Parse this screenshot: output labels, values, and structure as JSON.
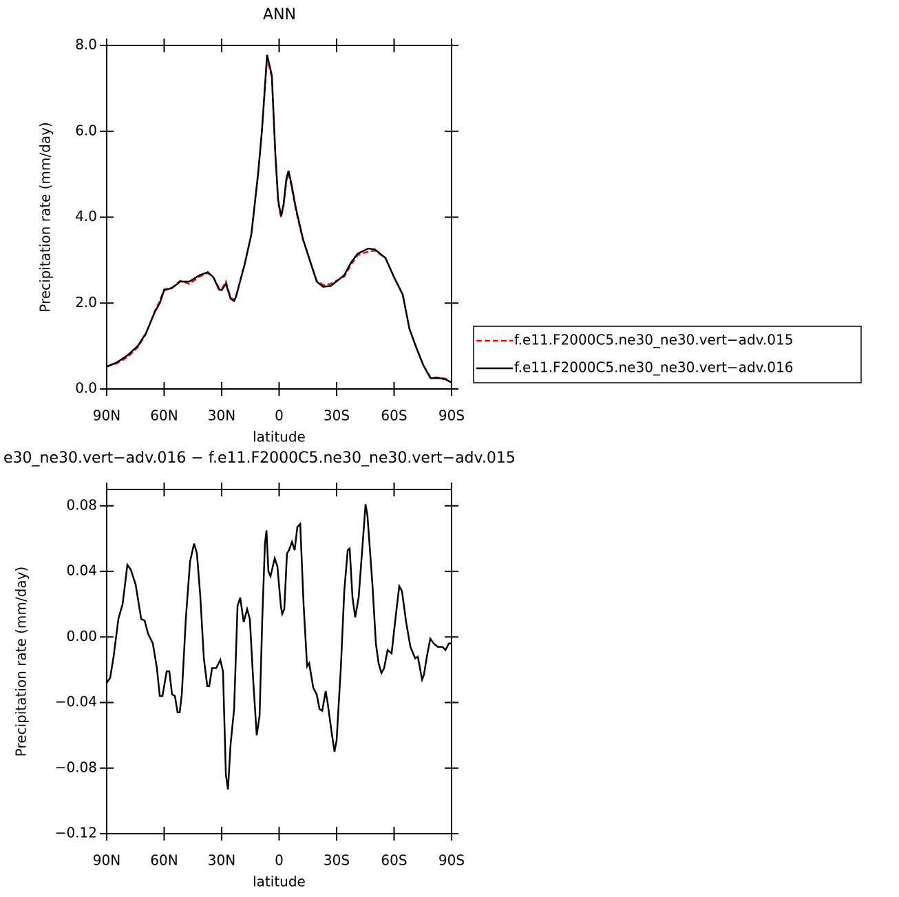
{
  "chart_data": [
    {
      "type": "line",
      "title": "ANN",
      "x_label": "latitude",
      "y_label": "Precipitation rate (mm/day)",
      "xlim": [
        90,
        -90
      ],
      "ylim": [
        0,
        8
      ],
      "xticks": [
        {
          "value": 90,
          "label": "90N"
        },
        {
          "value": 60,
          "label": "60N"
        },
        {
          "value": 30,
          "label": "30N"
        },
        0,
        {
          "value": -30,
          "label": "30S"
        },
        {
          "value": -60,
          "label": "60S"
        },
        {
          "value": -90,
          "label": "90S"
        }
      ],
      "yticks": [
        {
          "value": 0,
          "label": "0.0"
        },
        {
          "value": 2,
          "label": "2.0"
        },
        {
          "value": 4,
          "label": "4.0"
        },
        {
          "value": 6,
          "label": "6.0"
        },
        {
          "value": 8,
          "label": "8.0"
        }
      ],
      "legend": "right",
      "x": [
        90,
        84.6,
        79.2,
        73.8,
        69.5,
        64.8,
        62.3,
        60,
        55.9,
        51.6,
        46.9,
        41.5,
        37.2,
        34.3,
        31.4,
        30,
        27.8,
        25.3,
        23.5,
        22.5,
        18,
        14.5,
        13,
        11,
        9,
        6.3,
        3.8,
        2,
        0.5,
        -1,
        -2.3,
        -3.8,
        -4.9,
        -6.3,
        -8.8,
        -12.4,
        -16,
        -19.6,
        -23,
        -27,
        -34,
        -37.6,
        -41,
        -46.5,
        -50,
        -55.5,
        -60,
        -64.5,
        -68,
        -71.7,
        -75.3,
        -79,
        -84,
        -87,
        -90
      ],
      "series": [
        {
          "name": "f.e11.F2000C5.ne30_ne30.vert−adv.015",
          "color": "#ff0000",
          "line_style": "dashed",
          "values": [
            0.52,
            0.6,
            0.74,
            0.97,
            1.28,
            1.82,
            2.05,
            2.32,
            2.36,
            2.52,
            2.45,
            2.62,
            2.7,
            2.6,
            2.35,
            2.32,
            2.5,
            2.12,
            2.08,
            2.17,
            2.9,
            3.6,
            4.2,
            5.0,
            6.0,
            7.72,
            7.25,
            5.45,
            4.35,
            4.0,
            4.25,
            4.85,
            5.02,
            4.75,
            4.15,
            3.48,
            3.0,
            2.52,
            2.42,
            2.45,
            2.62,
            2.9,
            3.12,
            3.2,
            3.22,
            3.05,
            2.6,
            2.2,
            1.4,
            0.95,
            0.55,
            0.27,
            0.26,
            0.24,
            0.15
          ]
        },
        {
          "name": "f.e11.F2000C5.ne30_ne30.vert−adv.016",
          "color": "#000000",
          "line_style": "solid",
          "values": [
            0.52,
            0.62,
            0.78,
            1.0,
            1.3,
            1.8,
            2.0,
            2.3,
            2.35,
            2.5,
            2.5,
            2.65,
            2.72,
            2.6,
            2.32,
            2.3,
            2.45,
            2.1,
            2.05,
            2.15,
            2.9,
            3.6,
            4.2,
            5.0,
            6.0,
            7.78,
            7.3,
            5.5,
            4.4,
            4.02,
            4.3,
            4.9,
            5.08,
            4.8,
            4.2,
            3.5,
            3.0,
            2.5,
            2.38,
            2.4,
            2.65,
            2.95,
            3.15,
            3.27,
            3.25,
            3.05,
            2.6,
            2.2,
            1.4,
            0.95,
            0.55,
            0.25,
            0.25,
            0.22,
            0.15
          ]
        }
      ]
    },
    {
      "type": "line",
      "title": "e30_ne30.vert−adv.016 − f.e11.F2000C5.ne30_ne30.vert−adv.015",
      "x_label": "latitude",
      "y_label": "Precipitation rate (mm/day)",
      "xlim": [
        90,
        -90
      ],
      "ylim": [
        -0.12,
        0.09
      ],
      "xticks": [
        {
          "value": 90,
          "label": "90N"
        },
        {
          "value": 60,
          "label": "60N"
        },
        {
          "value": 30,
          "label": "30N"
        },
        0,
        {
          "value": -30,
          "label": "30S"
        },
        {
          "value": -60,
          "label": "60S"
        },
        {
          "value": -90,
          "label": "90S"
        }
      ],
      "yticks": [
        {
          "value": -0.12,
          "label": "−0.12"
        },
        {
          "value": -0.08,
          "label": "−0.08"
        },
        {
          "value": -0.04,
          "label": "−0.04"
        },
        {
          "value": 0,
          "label": "0.00"
        },
        0.04,
        0.08
      ],
      "x": [
        90,
        88.2,
        86.4,
        83.9,
        81.7,
        79.2,
        77.4,
        74.9,
        72.0,
        70.2,
        68.4,
        65.9,
        63.8,
        62.3,
        60.9,
        58.7,
        57.3,
        55.9,
        54.4,
        53.0,
        51.9,
        50.8,
        48.7,
        46.5,
        44.4,
        42.9,
        41.1,
        39.3,
        37.5,
        36.5,
        35.0,
        32.9,
        30.7,
        29.3,
        27.8,
        26.7,
        25.3,
        23.5,
        21.7,
        20.3,
        18.5,
        16.7,
        15.3,
        13.5,
        11.7,
        10.2,
        8.8,
        7.4,
        6.6,
        5.6,
        4.5,
        2.3,
        0.9,
        -0.9,
        -1.6,
        -2.7,
        -4.1,
        -5.2,
        -6.7,
        -8.1,
        -9.5,
        -11.0,
        -12.8,
        -14.6,
        -15.7,
        -17.8,
        -19.6,
        -21.1,
        -22.5,
        -24.3,
        -25.3,
        -27.5,
        -28.9,
        -30.0,
        -32.2,
        -34.0,
        -35.8,
        -36.8,
        -38.3,
        -39.7,
        -41.5,
        -43.6,
        -45.1,
        -46.1,
        -48.7,
        -50.5,
        -51.9,
        -53.4,
        -54.8,
        -56.6,
        -58.7,
        -60.5,
        -62.7,
        -64.1,
        -66.3,
        -68.5,
        -71.0,
        -72.4,
        -74.6,
        -75.6,
        -77.1,
        -78.9,
        -80.7,
        -82.8,
        -85.3,
        -86.8,
        -88.6,
        -90
      ],
      "series": [
        {
          "color": "#000000",
          "line_style": "solid",
          "values": [
            -0.028,
            -0.025,
            -0.012,
            0.011,
            0.02,
            0.044,
            0.041,
            0.032,
            0.011,
            0.01,
            0.002,
            -0.004,
            -0.019,
            -0.036,
            -0.036,
            -0.021,
            -0.021,
            -0.035,
            -0.036,
            -0.046,
            -0.046,
            -0.035,
            0.011,
            0.046,
            0.057,
            0.051,
            0.024,
            -0.013,
            -0.03,
            -0.03,
            -0.019,
            -0.019,
            -0.014,
            -0.021,
            -0.084,
            -0.093,
            -0.065,
            -0.044,
            0.019,
            0.024,
            0.009,
            0.017,
            0.011,
            -0.027,
            -0.06,
            -0.048,
            0.011,
            0.057,
            0.065,
            0.04,
            0.037,
            0.048,
            0.043,
            0.019,
            0.014,
            0.017,
            0.051,
            0.053,
            0.058,
            0.053,
            0.067,
            0.069,
            0.019,
            -0.018,
            -0.016,
            -0.031,
            -0.035,
            -0.044,
            -0.045,
            -0.033,
            -0.04,
            -0.059,
            -0.07,
            -0.063,
            -0.019,
            0.028,
            0.053,
            0.054,
            0.024,
            0.012,
            0.024,
            0.057,
            0.081,
            0.074,
            0.032,
            -0.004,
            -0.016,
            -0.022,
            -0.019,
            -0.008,
            -0.01,
            0.009,
            0.031,
            0.028,
            0.009,
            -0.006,
            -0.013,
            -0.012,
            -0.026,
            -0.023,
            -0.012,
            -0.001,
            -0.004,
            -0.006,
            -0.006,
            -0.008,
            -0.004,
            -0.004
          ]
        }
      ]
    }
  ]
}
